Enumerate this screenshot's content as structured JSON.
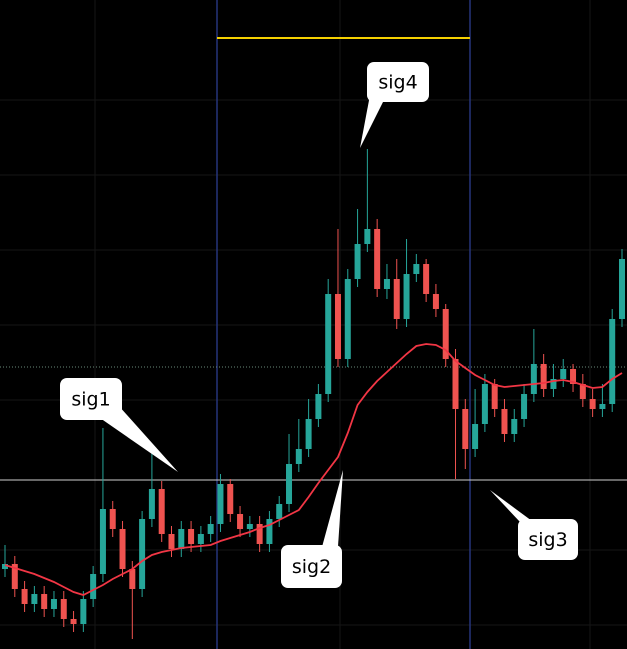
{
  "chart_data": {
    "type": "candlestick",
    "ylim": [
      0,
      649
    ],
    "up_color": "#26a69a",
    "down_color": "#ef5350",
    "series": [
      {
        "open": [
          80,
          85,
          60,
          45,
          55,
          40,
          50,
          30,
          25,
          50,
          75,
          140,
          120,
          80,
          60,
          130,
          160,
          115,
          100,
          120,
          105,
          115,
          125,
          165,
          135,
          120,
          125,
          105,
          130,
          145,
          185,
          200,
          230,
          255,
          355,
          290,
          370,
          405,
          420,
          360,
          370,
          330,
          375,
          385,
          355,
          340,
          290,
          240,
          200,
          225,
          265,
          240,
          215,
          230,
          255,
          285,
          260,
          270,
          280,
          265,
          250,
          240,
          245,
          330
        ],
        "high": [
          104,
          93,
          68,
          63,
          63,
          58,
          58,
          38,
          58,
          83,
          221,
          148,
          128,
          88,
          138,
          198,
          168,
          123,
          128,
          128,
          123,
          133,
          175,
          170,
          143,
          133,
          133,
          138,
          153,
          215,
          230,
          250,
          265,
          370,
          420,
          380,
          440,
          500,
          430,
          385,
          390,
          410,
          395,
          390,
          365,
          345,
          300,
          250,
          260,
          275,
          270,
          250,
          240,
          265,
          320,
          295,
          285,
          290,
          285,
          275,
          260,
          265,
          340,
          400
        ],
        "low": [
          72,
          52,
          37,
          37,
          32,
          32,
          22,
          17,
          17,
          42,
          67,
          112,
          72,
          10,
          52,
          122,
          107,
          92,
          92,
          97,
          97,
          107,
          117,
          127,
          112,
          112,
          97,
          97,
          122,
          137,
          177,
          192,
          222,
          247,
          282,
          282,
          362,
          397,
          352,
          350,
          320,
          322,
          367,
          347,
          332,
          282,
          170,
          180,
          192,
          217,
          232,
          207,
          207,
          222,
          247,
          252,
          252,
          262,
          257,
          242,
          232,
          232,
          237,
          322
        ],
        "close": [
          85,
          60,
          45,
          55,
          40,
          50,
          30,
          25,
          50,
          75,
          140,
          120,
          80,
          60,
          130,
          160,
          115,
          100,
          120,
          105,
          115,
          125,
          165,
          135,
          120,
          125,
          105,
          130,
          145,
          185,
          200,
          230,
          255,
          355,
          290,
          370,
          405,
          420,
          360,
          370,
          330,
          375,
          385,
          355,
          340,
          290,
          240,
          200,
          225,
          265,
          240,
          215,
          230,
          255,
          285,
          260,
          270,
          280,
          265,
          250,
          240,
          245,
          330,
          390
        ]
      }
    ],
    "ma": {
      "color": "#f23645",
      "values": [
        84,
        81,
        78,
        75,
        71,
        67,
        62,
        57,
        54,
        59,
        64,
        70,
        75,
        80,
        88,
        94,
        97,
        99,
        101,
        102,
        103,
        104,
        108,
        111,
        114,
        117,
        121,
        124,
        129,
        134,
        139,
        152,
        166,
        179,
        192,
        216,
        244,
        257,
        268,
        277,
        286,
        295,
        303,
        305,
        304,
        299,
        288,
        281,
        274,
        269,
        264,
        262,
        263,
        264,
        265,
        266,
        268,
        269,
        267,
        264,
        261,
        262,
        270,
        276
      ]
    },
    "hlines": [
      {
        "value": 169,
        "color": "#cfcfcf",
        "style": "solid"
      },
      {
        "value": 282,
        "color": "#6a8a7a",
        "style": "dotted"
      }
    ],
    "annotations": [
      "sig1",
      "sig2",
      "sig3",
      "sig4"
    ]
  }
}
